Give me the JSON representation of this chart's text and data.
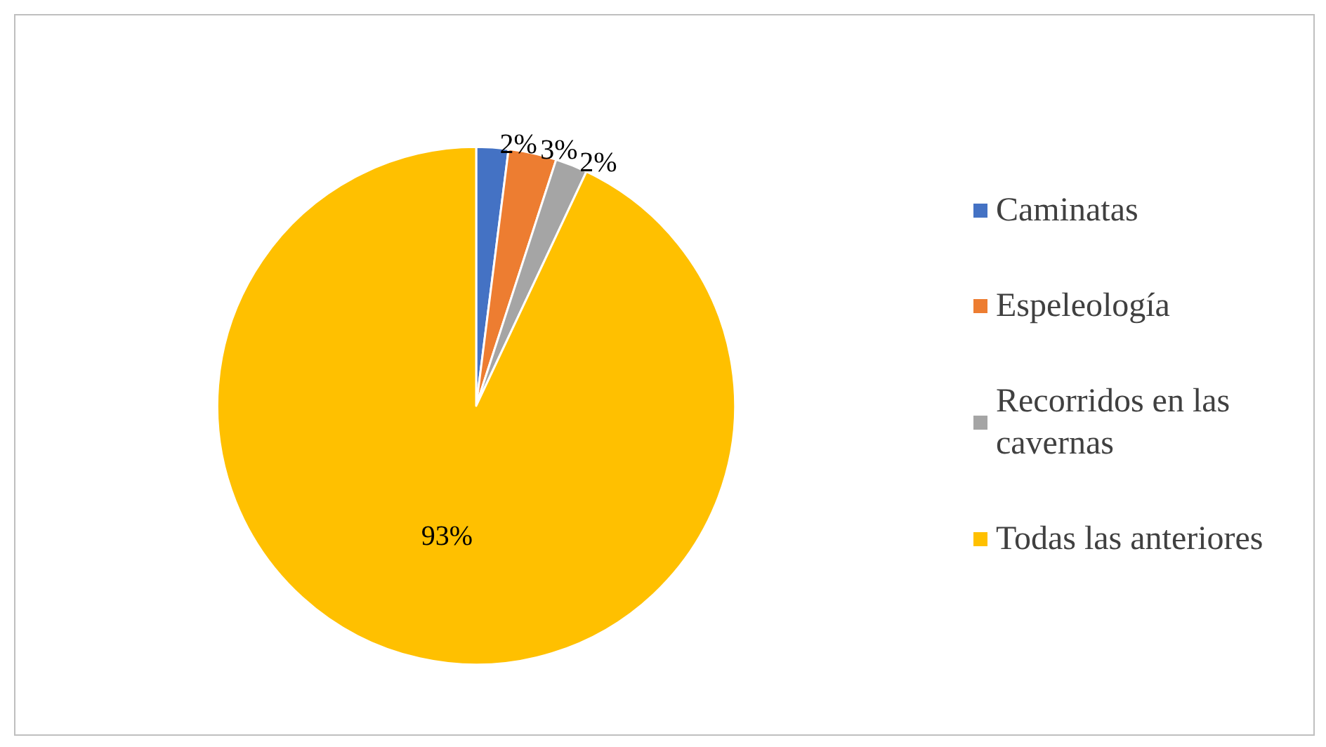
{
  "chart_data": {
    "type": "pie",
    "categories": [
      "Caminatas",
      "Espeleología",
      "Recorridos en las cavernas",
      "Todas las anteriores"
    ],
    "values": [
      2,
      3,
      2,
      93
    ],
    "colors": [
      "#4472c4",
      "#ed7d31",
      "#a5a5a5",
      "#ffc000"
    ],
    "value_labels": [
      "2%",
      "3%",
      "2%",
      "93%"
    ],
    "legend": "right"
  }
}
